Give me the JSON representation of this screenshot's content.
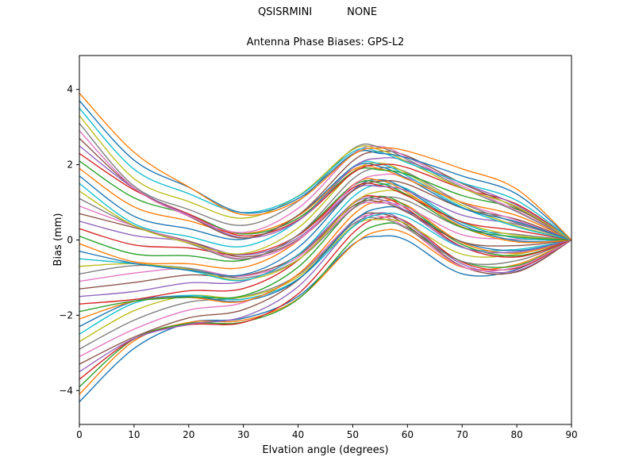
{
  "chart_data": {
    "type": "line",
    "suptitle_parts": [
      "QSISRMINI",
      "NONE"
    ],
    "title": "Antenna Phase Biases: GPS-L2",
    "xlabel": "Elvation angle (degrees)",
    "ylabel": "Bias (mm)",
    "xlim": [
      0,
      90
    ],
    "ylim": [
      -4.9,
      4.9
    ],
    "x_ticks": [
      0,
      10,
      20,
      30,
      40,
      50,
      60,
      70,
      80,
      90
    ],
    "y_ticks": [
      -4,
      -2,
      0,
      2,
      4
    ],
    "grid": false,
    "legend": "none",
    "line_width": 1.4,
    "palette": [
      "#1f77b4",
      "#ff7f0e",
      "#2ca02c",
      "#d62728",
      "#9467bd",
      "#8c564b",
      "#e377c2",
      "#7f7f7f",
      "#bcbd22",
      "#17becf"
    ],
    "x": [
      0,
      10,
      20,
      30,
      40,
      50,
      55,
      60,
      70,
      80,
      90
    ],
    "series": [
      [
        -4.3,
        -2.88,
        -2.2,
        -2.08,
        -1.5,
        -0.12,
        0.1,
        -0.02,
        -0.9,
        -0.78,
        0
      ],
      [
        -4.1,
        -2.68,
        -2.19,
        -2.13,
        -1.56,
        -0.14,
        0.24,
        0.16,
        -0.72,
        -0.65,
        0
      ],
      [
        -3.9,
        -2.63,
        -2.22,
        -2.18,
        -1.57,
        0.0,
        0.41,
        0.33,
        -0.57,
        -0.68,
        0
      ],
      [
        -3.7,
        -2.63,
        -2.25,
        -2.19,
        -1.43,
        0.18,
        0.59,
        0.47,
        -0.59,
        -0.75,
        0
      ],
      [
        -3.5,
        -2.62,
        -2.24,
        -2.04,
        -1.24,
        0.36,
        0.72,
        0.44,
        -0.64,
        -0.82,
        0
      ],
      [
        -3.3,
        -2.58,
        -2.07,
        -1.85,
        -1.06,
        0.5,
        0.7,
        0.38,
        -0.7,
        -0.85,
        0
      ],
      [
        -3.1,
        -2.37,
        -1.86,
        -1.66,
        -0.91,
        0.48,
        0.63,
        0.31,
        -0.71,
        -0.72,
        0
      ],
      [
        -2.9,
        -2.13,
        -1.65,
        -1.51,
        -0.93,
        0.42,
        0.57,
        0.29,
        -0.57,
        -0.55,
        0
      ],
      [
        -2.7,
        -1.88,
        -1.48,
        -1.52,
        -0.98,
        0.36,
        0.54,
        0.42,
        -0.38,
        -0.38,
        0
      ],
      [
        -2.5,
        -1.68,
        -1.47,
        -1.57,
        -1.04,
        0.34,
        0.68,
        0.6,
        -0.2,
        -0.25,
        0
      ],
      [
        -2.3,
        -1.63,
        -1.5,
        -1.62,
        -1.05,
        0.48,
        0.85,
        0.77,
        -0.05,
        -0.28,
        0
      ],
      [
        -2.1,
        -1.63,
        -1.53,
        -1.63,
        -0.91,
        0.66,
        1.03,
        0.91,
        -0.07,
        -0.35,
        0
      ],
      [
        -1.9,
        -1.62,
        -1.52,
        -1.48,
        -0.72,
        0.84,
        1.16,
        0.88,
        -0.12,
        -0.42,
        0
      ],
      [
        -1.7,
        -1.58,
        -1.35,
        -1.29,
        -0.54,
        0.98,
        1.14,
        0.82,
        -0.18,
        -0.45,
        0
      ],
      [
        -1.5,
        -1.37,
        -1.14,
        -1.1,
        -0.39,
        0.96,
        1.07,
        0.75,
        -0.19,
        -0.32,
        0
      ],
      [
        -1.3,
        -1.13,
        -0.93,
        -0.95,
        -0.41,
        0.9,
        1.01,
        0.73,
        -0.05,
        -0.15,
        0
      ],
      [
        -1.1,
        -0.88,
        -0.76,
        -0.96,
        -0.46,
        0.84,
        0.98,
        0.86,
        0.14,
        0.02,
        0
      ],
      [
        -0.9,
        -0.68,
        -0.75,
        -1.01,
        -0.52,
        0.82,
        1.12,
        1.04,
        0.33,
        0.15,
        0
      ],
      [
        -0.7,
        -0.63,
        -0.78,
        -1.06,
        -0.53,
        0.96,
        1.29,
        1.21,
        0.47,
        0.12,
        0
      ],
      [
        -0.5,
        -0.63,
        -0.81,
        -1.07,
        -0.39,
        1.14,
        1.47,
        1.35,
        0.46,
        0.05,
        0
      ],
      [
        -0.3,
        -0.62,
        -0.8,
        -0.92,
        -0.2,
        1.32,
        1.6,
        1.32,
        0.4,
        -0.02,
        0
      ],
      [
        -0.1,
        -0.58,
        -0.63,
        -0.73,
        -0.02,
        1.46,
        1.58,
        1.26,
        0.35,
        -0.05,
        0
      ],
      [
        0.1,
        -0.37,
        -0.42,
        -0.54,
        0.13,
        1.44,
        1.51,
        1.19,
        0.33,
        0.08,
        0
      ],
      [
        0.3,
        -0.13,
        -0.21,
        -0.39,
        0.12,
        1.38,
        1.45,
        1.17,
        0.48,
        0.25,
        0
      ],
      [
        0.5,
        0.12,
        -0.04,
        -0.4,
        0.06,
        1.32,
        1.42,
        1.3,
        0.66,
        0.42,
        0
      ],
      [
        0.7,
        0.33,
        -0.03,
        -0.45,
        0.01,
        1.3,
        1.56,
        1.48,
        0.85,
        0.55,
        0
      ],
      [
        0.9,
        0.37,
        -0.06,
        -0.5,
        -0.01,
        1.44,
        1.73,
        1.65,
        0.99,
        0.52,
        0
      ],
      [
        1.1,
        0.38,
        -0.09,
        -0.51,
        0.14,
        1.62,
        1.91,
        1.79,
        0.98,
        0.45,
        0
      ],
      [
        1.3,
        0.38,
        -0.08,
        -0.36,
        0.32,
        1.8,
        2.04,
        1.76,
        0.92,
        0.38,
        0
      ],
      [
        1.5,
        0.43,
        0.09,
        -0.17,
        0.51,
        1.94,
        2.02,
        1.7,
        0.87,
        0.35,
        0
      ],
      [
        1.7,
        0.63,
        0.3,
        0.02,
        0.65,
        1.92,
        1.95,
        1.63,
        0.85,
        0.48,
        0
      ],
      [
        1.9,
        0.88,
        0.51,
        0.17,
        0.64,
        1.86,
        1.89,
        1.61,
        1.0,
        0.65,
        0
      ],
      [
        2.1,
        1.12,
        0.68,
        0.16,
        0.58,
        1.8,
        1.86,
        1.74,
        1.18,
        0.82,
        0
      ],
      [
        2.3,
        1.33,
        0.69,
        0.11,
        0.53,
        1.78,
        2.0,
        1.92,
        1.37,
        0.95,
        0
      ],
      [
        2.5,
        1.37,
        0.66,
        0.06,
        0.51,
        1.92,
        2.17,
        2.09,
        1.51,
        0.92,
        0
      ],
      [
        2.7,
        1.38,
        0.63,
        0.05,
        0.66,
        2.1,
        2.35,
        2.23,
        1.5,
        0.85,
        0
      ],
      [
        2.9,
        1.38,
        0.64,
        0.2,
        0.84,
        2.28,
        2.48,
        2.2,
        1.44,
        0.78,
        0
      ],
      [
        3.1,
        1.43,
        0.81,
        0.39,
        1.03,
        2.42,
        2.46,
        2.14,
        1.39,
        0.75,
        0
      ],
      [
        3.3,
        1.63,
        1.02,
        0.58,
        1.17,
        2.4,
        2.39,
        2.07,
        1.37,
        0.88,
        0
      ],
      [
        3.5,
        1.88,
        1.23,
        0.73,
        1.16,
        2.34,
        2.33,
        2.05,
        1.52,
        1.05,
        0
      ],
      [
        3.7,
        2.12,
        1.4,
        0.72,
        1.1,
        2.28,
        2.3,
        2.18,
        1.7,
        1.22,
        0
      ],
      [
        3.9,
        2.33,
        1.41,
        0.67,
        1.05,
        2.26,
        2.44,
        2.36,
        1.89,
        1.35,
        0
      ]
    ]
  }
}
